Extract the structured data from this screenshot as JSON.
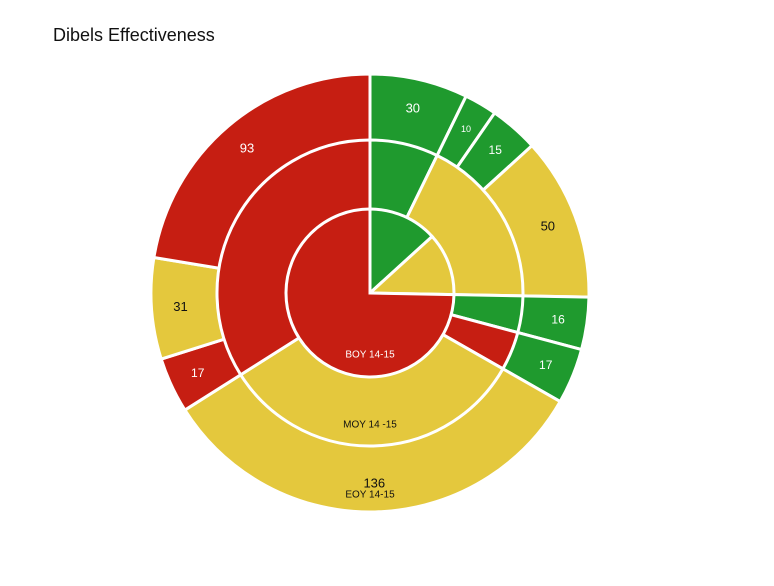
{
  "chart_data": {
    "type": "pie",
    "title": "Dibels Effectiveness",
    "rings": [
      "BOY 14-15",
      "MOY 14 -15",
      "EOY 14-15"
    ],
    "colors": {
      "red": "#c61e12",
      "yellow": "#e4c83d",
      "green": "#1f9a2e"
    },
    "slices": [
      {
        "color": "green",
        "value": 30,
        "label": "30"
      },
      {
        "color": "green",
        "value": 10,
        "label": "10"
      },
      {
        "color": "green",
        "value": 15,
        "label": "15"
      },
      {
        "color": "yellow",
        "value": 50,
        "label": "50"
      },
      {
        "color": "green",
        "value": 16,
        "label": "16"
      },
      {
        "color": "green",
        "value": 17,
        "label": "17"
      },
      {
        "color": "yellow",
        "value": 136,
        "label": "136"
      },
      {
        "color": "red",
        "value": 17,
        "label": "17"
      },
      {
        "color": "yellow",
        "value": 31,
        "label": "31"
      },
      {
        "color": "red",
        "value": 93,
        "label": "93"
      }
    ],
    "groups": [
      {
        "ring": "BOY 14-15",
        "color": "green",
        "from": 0,
        "to": 2
      },
      {
        "ring": "BOY 14-15",
        "color": "yellow",
        "from": 3,
        "to": 3
      },
      {
        "ring": "BOY 14-15",
        "color": "red",
        "from": 4,
        "to": 9
      },
      {
        "ring": "MOY 14 -15",
        "color": "green",
        "from": 0,
        "to": 0
      },
      {
        "ring": "MOY 14 -15",
        "color": "yellow",
        "from": 1,
        "to": 3
      },
      {
        "ring": "MOY 14 -15",
        "color": "green",
        "from": 4,
        "to": 4
      },
      {
        "ring": "MOY 14 -15",
        "color": "red",
        "from": 5,
        "to": 5
      },
      {
        "ring": "MOY 14 -15",
        "color": "yellow",
        "from": 6,
        "to": 6
      },
      {
        "ring": "MOY 14 -15",
        "color": "red",
        "from": 7,
        "to": 9
      }
    ]
  }
}
